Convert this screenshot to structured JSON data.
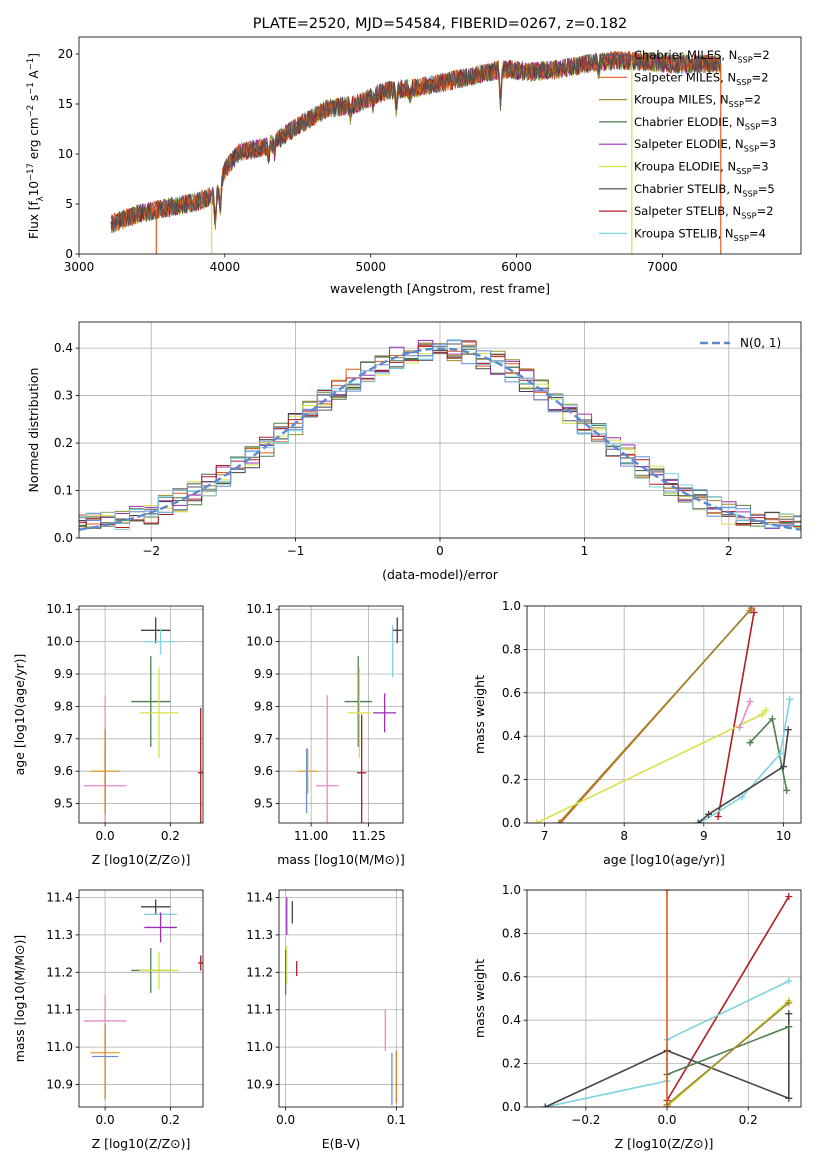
{
  "colors": {
    "Chabrier MILES": "#5a5a5a",
    "Salpeter MILES": "#e25c1d",
    "Kroupa MILES": "#9a8a30",
    "Chabrier ELODIE": "#4f7e4f",
    "Salpeter ELODIE": "#9a2fb4",
    "Kroupa ELODIE": "#d7e14a",
    "Chabrier STELIB": "#444444",
    "Salpeter STELIB": "#b01c24",
    "Kroupa STELIB": "#7ed3df",
    "extra_pink": "#e58ac8",
    "extra_blue": "#6d8fd6",
    "extra_gold": "#d9a437",
    "extra_orange": "#e07a2a",
    "normal": "#5b8ad0"
  },
  "chart_data": [
    {
      "type": "line",
      "id": "spectrum",
      "title": "PLATE=2520, MJD=54584, FIBERID=0267, z=0.182",
      "xlabel": "wavelength [Angstrom, rest frame]",
      "ylabel": "Flux [f_λ10^-17 erg cm^-2 s^-1 A^-1]",
      "xlim": [
        3000,
        7950
      ],
      "ylim": [
        0,
        21.7
      ],
      "xticks": [
        "3000",
        "4000",
        "5000",
        "6000",
        "7000"
      ],
      "yticks": [
        "0",
        "5",
        "10",
        "15",
        "20"
      ],
      "grid": false,
      "legend_position": "right",
      "series": [
        {
          "name": "Chabrier MILES, N_SSP=2"
        },
        {
          "name": "Salpeter MILES, N_SSP=2"
        },
        {
          "name": "Kroupa MILES, N_SSP=2"
        },
        {
          "name": "Chabrier ELODIE, N_SSP=3"
        },
        {
          "name": "Salpeter ELODIE, N_SSP=3"
        },
        {
          "name": "Kroupa ELODIE, N_SSP=3"
        },
        {
          "name": "Chabrier STELIB, N_SSP=5"
        },
        {
          "name": "Salpeter STELIB, N_SSP=2"
        },
        {
          "name": "Kroupa STELIB, N_SSP=4"
        }
      ],
      "continuum": {
        "x": [
          3220,
          3400,
          3600,
          3800,
          3950,
          4000,
          4100,
          4300,
          4500,
          4700,
          4900,
          5100,
          5300,
          5500,
          5700,
          5900,
          6100,
          6300,
          6500,
          6700,
          6900,
          7100,
          7300,
          7400
        ],
        "y": [
          3.0,
          4.0,
          4.6,
          5.2,
          6.0,
          8.5,
          10.2,
          10.8,
          12.8,
          14.5,
          15.0,
          16.3,
          16.6,
          17.2,
          17.8,
          18.5,
          18.2,
          18.5,
          19.1,
          19.4,
          19.2,
          19.0,
          19.0,
          19.0
        ]
      },
      "drops": [
        {
          "x": 3530,
          "series": "Salpeter MILES"
        },
        {
          "x": 3910,
          "series": "Kroupa ELODIE"
        },
        {
          "x": 6790,
          "series": "Kroupa ELODIE"
        },
        {
          "x": 7400,
          "series": "Salpeter MILES"
        }
      ]
    },
    {
      "type": "step",
      "id": "residuals",
      "xlabel": "(data-model)/error",
      "ylabel": "Normed distribution",
      "xlim": [
        -2.5,
        2.5
      ],
      "ylim": [
        0,
        0.455
      ],
      "xticks": [
        "−2",
        "−1",
        "0",
        "1",
        "2"
      ],
      "yticks": [
        "0.0",
        "0.1",
        "0.2",
        "0.3",
        "0.4"
      ],
      "grid": true,
      "legend_position": "top-right",
      "legend": "N(0, 1)",
      "bin_width": 0.1
    },
    {
      "type": "scatter",
      "id": "z-age",
      "xlabel": "Z [log10(Z/Z⊙)]",
      "ylabel": "age  [log10(age/yr)]",
      "xlim": [
        -0.08,
        0.3
      ],
      "ylim": [
        9.44,
        10.11
      ],
      "xticks": [
        "0.0",
        "0.2"
      ],
      "yticks": [
        "9.5",
        "9.6",
        "9.7",
        "9.8",
        "9.9",
        "10.0",
        "10.1"
      ],
      "grid": true,
      "points": [
        {
          "series": "Chabrier STELIB",
          "x": 0.155,
          "y": 10.035,
          "xerr": 0.045,
          "yerr": 0.04
        },
        {
          "series": "Kroupa STELIB",
          "x": 0.17,
          "y": 10.0,
          "xerr": 0.05,
          "yerr": 0.04
        },
        {
          "series": "Chabrier ELODIE",
          "x": 0.14,
          "y": 9.815,
          "xerr": 0.06,
          "yerr": 0.14
        },
        {
          "series": "Kroupa ELODIE",
          "x": 0.165,
          "y": 9.78,
          "xerr": 0.06,
          "yerr": 0.14
        },
        {
          "series": "Salpeter STELIB",
          "x": 0.293,
          "y": 9.595,
          "xerr": 0.008,
          "yerr": 0.2
        },
        {
          "series": "extra_gold",
          "x": 0.0,
          "y": 9.6,
          "xerr": 0.045,
          "yerr": 0.07
        },
        {
          "series": "extra_pink",
          "x": 0.0,
          "y": 9.555,
          "xerr": 0.065,
          "yerr": 0.28
        },
        {
          "series": "extra_orange",
          "x": 0.0,
          "y": 9.6,
          "xerr": 0.0,
          "yerr": 0.13
        }
      ]
    },
    {
      "type": "scatter",
      "id": "mass-age",
      "xlabel": "mass [log10(M/M⊙)]",
      "ylabel": "",
      "xlim": [
        10.86,
        11.4
      ],
      "ylim": [
        9.44,
        10.11
      ],
      "xticks": [
        "11.00",
        "11.25"
      ],
      "yticks": [
        "9.5",
        "9.6",
        "9.7",
        "9.8",
        "9.9",
        "10.0",
        "10.1"
      ],
      "grid": true,
      "points": [
        {
          "series": "Chabrier STELIB",
          "x": 11.375,
          "y": 10.035,
          "xerr": 0.02,
          "yerr": 0.04
        },
        {
          "series": "Kroupa STELIB",
          "x": 11.355,
          "y": 9.97,
          "xerr": 0.0,
          "yerr": 0.08
        },
        {
          "series": "Salpeter ELODIE",
          "x": 11.32,
          "y": 9.78,
          "xerr": 0.05,
          "yerr": 0.06
        },
        {
          "series": "Chabrier ELODIE",
          "x": 11.205,
          "y": 9.815,
          "xerr": 0.06,
          "yerr": 0.14
        },
        {
          "series": "Kroupa ELODIE",
          "x": 11.21,
          "y": 9.78,
          "xerr": 0.05,
          "yerr": 0.14
        },
        {
          "series": "Salpeter STELIB",
          "x": 11.22,
          "y": 9.595,
          "xerr": 0.02,
          "yerr": 0.18
        },
        {
          "series": "extra_pink",
          "x": 11.07,
          "y": 9.555,
          "xerr": 0.05,
          "yerr": 0.28
        },
        {
          "series": "extra_gold",
          "x": 10.985,
          "y": 9.6,
          "xerr": 0.045,
          "yerr": 0.07
        },
        {
          "series": "extra_blue",
          "x": 10.98,
          "y": 9.57,
          "xerr": 0.0,
          "yerr": 0.1
        }
      ]
    },
    {
      "type": "line",
      "id": "age-weight",
      "xlabel": "age  [log10(age/yr)]",
      "ylabel": "mass weight",
      "xlim": [
        6.78,
        10.22
      ],
      "ylim": [
        0,
        1.0
      ],
      "xticks": [
        "7",
        "8",
        "9",
        "10"
      ],
      "yticks": [
        "0.0",
        "0.2",
        "0.4",
        "0.6",
        "0.8",
        "1.0"
      ],
      "grid": true,
      "series": [
        {
          "color": "Salpeter MILES",
          "x": [
            7.2,
            9.6
          ],
          "y": [
            0.0,
            0.99
          ]
        },
        {
          "color": "Kroupa MILES",
          "x": [
            7.18,
            9.58
          ],
          "y": [
            0.0,
            0.98
          ]
        },
        {
          "color": "Salpeter STELIB",
          "x": [
            9.18,
            9.63
          ],
          "y": [
            0.03,
            0.97
          ]
        },
        {
          "color": "Kroupa ELODIE",
          "x": [
            6.9,
            9.73,
            9.78
          ],
          "y": [
            0.0,
            0.5,
            0.52
          ]
        },
        {
          "color": "Chabrier ELODIE",
          "x": [
            9.58,
            9.86,
            10.04
          ],
          "y": [
            0.37,
            0.48,
            0.15
          ]
        },
        {
          "color": "extra_pink",
          "x": [
            9.45,
            9.58
          ],
          "y": [
            0.44,
            0.56
          ]
        },
        {
          "color": "Kroupa STELIB",
          "x": [
            8.95,
            9.48,
            9.96,
            10.08
          ],
          "y": [
            0.0,
            0.12,
            0.32,
            0.57
          ]
        },
        {
          "color": "Chabrier STELIB",
          "x": [
            8.93,
            9.06,
            10.0,
            10.06
          ],
          "y": [
            0.0,
            0.04,
            0.26,
            0.43
          ]
        }
      ]
    },
    {
      "type": "scatter",
      "id": "z-mass",
      "xlabel": "Z [log10(Z/Z⊙)]",
      "ylabel": "mass [log10(M/M⊙)]",
      "xlim": [
        -0.08,
        0.3
      ],
      "ylim": [
        10.84,
        11.42
      ],
      "xticks": [
        "0.0",
        "0.2"
      ],
      "yticks": [
        "10.9",
        "11.0",
        "11.1",
        "11.2",
        "11.3",
        "11.4"
      ],
      "grid": true,
      "points": [
        {
          "series": "Chabrier STELIB",
          "x": 0.155,
          "y": 11.375,
          "xerr": 0.045,
          "yerr": 0.02
        },
        {
          "series": "Kroupa STELIB",
          "x": 0.17,
          "y": 11.355,
          "xerr": 0.05,
          "yerr": 0.0
        },
        {
          "series": "Salpeter ELODIE",
          "x": 0.17,
          "y": 11.32,
          "xerr": 0.05,
          "yerr": 0.04
        },
        {
          "series": "Chabrier ELODIE",
          "x": 0.14,
          "y": 11.205,
          "xerr": 0.06,
          "yerr": 0.06
        },
        {
          "series": "Kroupa ELODIE",
          "x": 0.165,
          "y": 11.205,
          "xerr": 0.06,
          "yerr": 0.05
        },
        {
          "series": "Salpeter STELIB",
          "x": 0.293,
          "y": 11.225,
          "xerr": 0.008,
          "yerr": 0.02
        },
        {
          "series": "extra_pink",
          "x": 0.0,
          "y": 11.07,
          "xerr": 0.065,
          "yerr": 0.07
        },
        {
          "series": "extra_gold",
          "x": 0.0,
          "y": 10.985,
          "xerr": 0.045,
          "yerr": 0.0
        },
        {
          "series": "extra_blue",
          "x": 0.0,
          "y": 10.975,
          "xerr": 0.04,
          "yerr": 0.0
        },
        {
          "series": "extra_orange",
          "x": 0.0,
          "y": 10.96,
          "xerr": 0.0,
          "yerr": 0.1
        }
      ]
    },
    {
      "type": "scatter",
      "id": "ebv-mass",
      "xlabel": "E(B-V)",
      "ylabel": "",
      "xlim": [
        -0.006,
        0.106
      ],
      "ylim": [
        10.84,
        11.42
      ],
      "xticks": [
        "0.0",
        "0.1"
      ],
      "yticks": [
        "10.9",
        "11.0",
        "11.1",
        "11.2",
        "11.3",
        "11.4"
      ],
      "grid": true,
      "points": [
        {
          "series": "Chabrier STELIB",
          "x": 0.006,
          "y": 11.36,
          "yerr": 0.03
        },
        {
          "series": "Salpeter ELODIE",
          "x": 0.001,
          "y": 11.35,
          "yerr": 0.05
        },
        {
          "series": "Chabrier ELODIE",
          "x": 0.0,
          "y": 11.2,
          "yerr": 0.06
        },
        {
          "series": "Kroupa ELODIE",
          "x": 0.001,
          "y": 11.22,
          "yerr": 0.05
        },
        {
          "series": "Salpeter STELIB",
          "x": 0.01,
          "y": 11.21,
          "yerr": 0.02
        },
        {
          "series": "extra_pink",
          "x": 0.09,
          "y": 11.045,
          "yerr": 0.055
        },
        {
          "series": "extra_blue",
          "x": 0.096,
          "y": 10.915,
          "yerr": 0.07
        },
        {
          "series": "extra_orange",
          "x": 0.1,
          "y": 10.92,
          "yerr": 0.07
        }
      ]
    },
    {
      "type": "line",
      "id": "z-weight",
      "xlabel": "Z [log10(Z/Z⊙)]",
      "ylabel": "mass weight",
      "xlim": [
        -0.345,
        0.33
      ],
      "ylim": [
        0,
        1.0
      ],
      "xticks": [
        "−0.2",
        "0.0",
        "0.2"
      ],
      "yticks": [
        "0.0",
        "0.2",
        "0.4",
        "0.6",
        "0.8",
        "1.0"
      ],
      "grid": true,
      "series": [
        {
          "color": "Salpeter STELIB",
          "x": [
            0.0,
            0.3
          ],
          "y": [
            0.03,
            0.97
          ]
        },
        {
          "color": "Kroupa STELIB",
          "x": [
            -0.3,
            0.0,
            0.0,
            0.3
          ],
          "y": [
            0.0,
            0.12,
            0.31,
            0.58
          ]
        },
        {
          "color": "Chabrier STELIB",
          "x": [
            -0.3,
            0.0,
            0.3,
            0.3
          ],
          "y": [
            0.0,
            0.26,
            0.04,
            0.43
          ]
        },
        {
          "color": "Chabrier ELODIE",
          "x": [
            0.0,
            0.3
          ],
          "y": [
            0.15,
            0.37
          ]
        },
        {
          "color": "Kroupa ELODIE",
          "x": [
            0.0,
            0.3
          ],
          "y": [
            0.0,
            0.49
          ]
        },
        {
          "color": "Kroupa MILES",
          "x": [
            0.0,
            0.3
          ],
          "y": [
            0.01,
            0.48
          ]
        },
        {
          "color": "Salpeter MILES",
          "x": [
            0.0,
            0.0
          ],
          "y": [
            0.0,
            1.0
          ]
        }
      ]
    }
  ]
}
